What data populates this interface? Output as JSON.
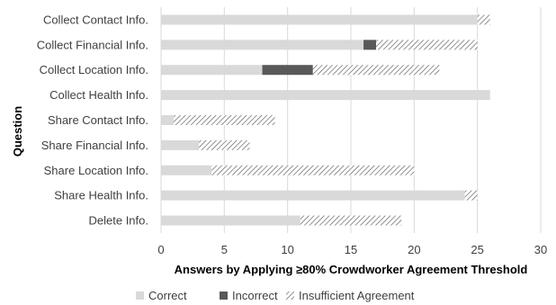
{
  "chart_data": {
    "type": "bar",
    "orientation": "horizontal",
    "stacked": true,
    "categories": [
      "Collect Contact Info.",
      "Collect Financial Info.",
      "Collect Location Info.",
      "Collect Health Info.",
      "Share Contact Info.",
      "Share Financial Info.",
      "Share Location Info.",
      "Share Health Info.",
      "Delete Info."
    ],
    "series": [
      {
        "name": "Correct",
        "values": [
          25,
          16,
          8,
          26,
          1,
          3,
          4,
          24,
          11
        ],
        "color": "#d9d9d9",
        "pattern": "solid"
      },
      {
        "name": "Incorrect",
        "values": [
          0,
          1,
          4,
          0,
          0,
          0,
          0,
          0,
          0
        ],
        "color": "#595959",
        "pattern": "solid"
      },
      {
        "name": "Insufficient Agreement",
        "values": [
          1,
          8,
          10,
          0,
          8,
          4,
          16,
          1,
          8
        ],
        "color": "#595959",
        "pattern": "diagonal-hatch"
      }
    ],
    "xlabel": "Answers by Applying ≥80% Crowdworker Agreement Threshold",
    "ylabel": "Question",
    "xlim": [
      0,
      30
    ],
    "xticks": [
      0,
      5,
      10,
      15,
      20,
      25,
      30
    ],
    "grid": "vertical",
    "legend_position": "bottom"
  }
}
